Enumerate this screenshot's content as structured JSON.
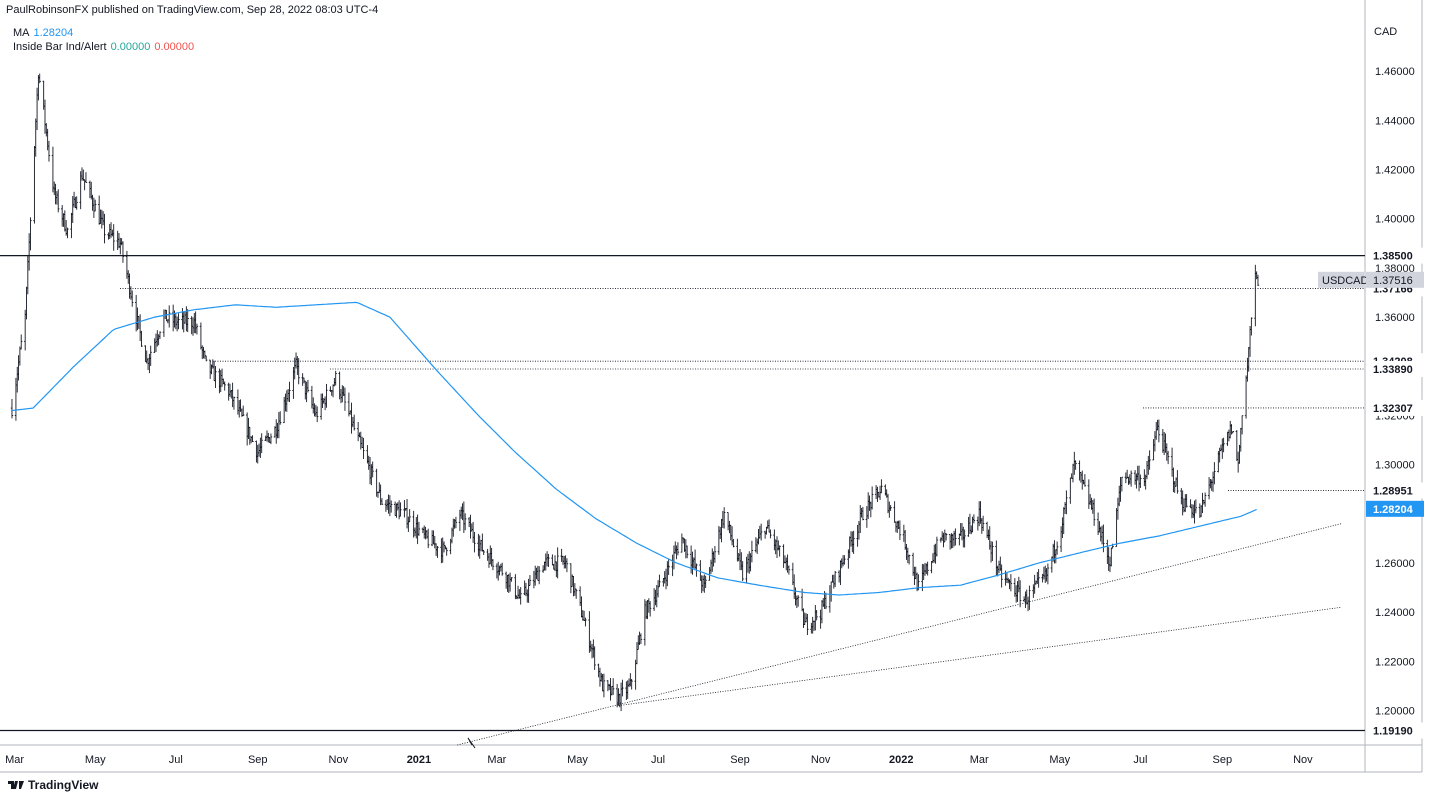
{
  "header": {
    "published": "PaulRobinsonFX published on TradingView.com, Sep 28, 2022 08:03 UTC-4"
  },
  "legend": {
    "ma_label": "MA",
    "ma_value": "1.28204",
    "inside_bar_label": "Inside Bar Ind/Alert",
    "inside_bar_green": "0.00000",
    "inside_bar_red": "0.00000"
  },
  "footer": {
    "brand": "TradingView",
    "logo_icon": "tradingview-logo-icon"
  },
  "colors": {
    "ma_line": "#2196f3",
    "candle": "#131722",
    "background": "#ffffff",
    "ma_badge": "#2196f3"
  },
  "chart_data": {
    "type": "candlestick",
    "symbol": "USDCAD",
    "currency": "CAD",
    "ylim": [
      1.186,
      1.48
    ],
    "y_ticks": [
      "1.46000",
      "1.44000",
      "1.42000",
      "1.40000",
      "1.38000",
      "1.36000",
      "1.34000",
      "1.32000",
      "1.30000",
      "1.26000",
      "1.24000",
      "1.22000",
      "1.20000"
    ],
    "x_ticks": [
      {
        "label": "Mar",
        "bold": false
      },
      {
        "label": "May",
        "bold": false
      },
      {
        "label": "Jul",
        "bold": false
      },
      {
        "label": "Sep",
        "bold": false
      },
      {
        "label": "Nov",
        "bold": false
      },
      {
        "label": "2021",
        "bold": true
      },
      {
        "label": "Mar",
        "bold": false
      },
      {
        "label": "May",
        "bold": false
      },
      {
        "label": "Jul",
        "bold": false
      },
      {
        "label": "Sep",
        "bold": false
      },
      {
        "label": "Nov",
        "bold": false
      },
      {
        "label": "2022",
        "bold": true
      },
      {
        "label": "Mar",
        "bold": false
      },
      {
        "label": "May",
        "bold": false
      },
      {
        "label": "Jul",
        "bold": false
      },
      {
        "label": "Sep",
        "bold": false
      },
      {
        "label": "Nov",
        "bold": false
      }
    ],
    "price_waypoints": [
      [
        "2020-02-28",
        1.323
      ],
      [
        "2020-03-09",
        1.36
      ],
      [
        "2020-03-19",
        1.46
      ],
      [
        "2020-03-31",
        1.41
      ],
      [
        "2020-04-10",
        1.395
      ],
      [
        "2020-04-21",
        1.418
      ],
      [
        "2020-05-08",
        1.395
      ],
      [
        "2020-05-20",
        1.39
      ],
      [
        "2020-06-01",
        1.36
      ],
      [
        "2020-06-09",
        1.342
      ],
      [
        "2020-06-22",
        1.36
      ],
      [
        "2020-07-01",
        1.358
      ],
      [
        "2020-07-15",
        1.358
      ],
      [
        "2020-07-24",
        1.34
      ],
      [
        "2020-08-10",
        1.33
      ],
      [
        "2020-09-01",
        1.305
      ],
      [
        "2020-09-15",
        1.315
      ],
      [
        "2020-09-30",
        1.34
      ],
      [
        "2020-10-15",
        1.32
      ],
      [
        "2020-10-30",
        1.335
      ],
      [
        "2020-11-16",
        1.31
      ],
      [
        "2020-12-04",
        1.285
      ],
      [
        "2020-12-21",
        1.28
      ],
      [
        "2021-01-06",
        1.27
      ],
      [
        "2021-01-20",
        1.265
      ],
      [
        "2021-02-01",
        1.28
      ],
      [
        "2021-02-19",
        1.265
      ],
      [
        "2021-03-08",
        1.255
      ],
      [
        "2021-03-19",
        1.245
      ],
      [
        "2021-04-06",
        1.26
      ],
      [
        "2021-04-22",
        1.26
      ],
      [
        "2021-05-04",
        1.24
      ],
      [
        "2021-05-20",
        1.21
      ],
      [
        "2021-06-01",
        1.205
      ],
      [
        "2021-06-10",
        1.21
      ],
      [
        "2021-06-21",
        1.24
      ],
      [
        "2021-07-02",
        1.25
      ],
      [
        "2021-07-19",
        1.27
      ],
      [
        "2021-08-05",
        1.25
      ],
      [
        "2021-08-20",
        1.28
      ],
      [
        "2021-09-03",
        1.255
      ],
      [
        "2021-09-20",
        1.275
      ],
      [
        "2021-10-05",
        1.26
      ],
      [
        "2021-10-20",
        1.235
      ],
      [
        "2021-11-01",
        1.24
      ],
      [
        "2021-11-17",
        1.26
      ],
      [
        "2021-12-03",
        1.28
      ],
      [
        "2021-12-17",
        1.29
      ],
      [
        "2022-01-03",
        1.27
      ],
      [
        "2022-01-14",
        1.25
      ],
      [
        "2022-01-31",
        1.27
      ],
      [
        "2022-02-15",
        1.27
      ],
      [
        "2022-03-01",
        1.28
      ],
      [
        "2022-03-17",
        1.255
      ],
      [
        "2022-04-05",
        1.245
      ],
      [
        "2022-04-21",
        1.255
      ],
      [
        "2022-05-02",
        1.275
      ],
      [
        "2022-05-12",
        1.3
      ],
      [
        "2022-05-27",
        1.28
      ],
      [
        "2022-06-08",
        1.26
      ],
      [
        "2022-06-17",
        1.295
      ],
      [
        "2022-07-05",
        1.295
      ],
      [
        "2022-07-14",
        1.315
      ],
      [
        "2022-08-01",
        1.285
      ],
      [
        "2022-08-15",
        1.28
      ],
      [
        "2022-08-31",
        1.305
      ],
      [
        "2022-09-08",
        1.315
      ],
      [
        "2022-09-13",
        1.3
      ],
      [
        "2022-09-16",
        1.322
      ],
      [
        "2022-09-20",
        1.34
      ],
      [
        "2022-09-23",
        1.36
      ],
      [
        "2022-09-26",
        1.375
      ],
      [
        "2022-09-28",
        1.3752
      ]
    ],
    "ma_waypoints": [
      [
        "2020-02-28",
        1.322
      ],
      [
        "2020-03-15",
        1.323
      ],
      [
        "2020-04-15",
        1.34
      ],
      [
        "2020-05-15",
        1.355
      ],
      [
        "2020-06-15",
        1.36
      ],
      [
        "2020-07-15",
        1.363
      ],
      [
        "2020-08-15",
        1.365
      ],
      [
        "2020-09-15",
        1.364
      ],
      [
        "2020-10-15",
        1.365
      ],
      [
        "2020-11-15",
        1.366
      ],
      [
        "2020-12-10",
        1.36
      ],
      [
        "2021-01-15",
        1.338
      ],
      [
        "2021-02-15",
        1.32
      ],
      [
        "2021-03-15",
        1.305
      ],
      [
        "2021-04-15",
        1.29
      ],
      [
        "2021-05-15",
        1.278
      ],
      [
        "2021-06-15",
        1.268
      ],
      [
        "2021-07-15",
        1.26
      ],
      [
        "2021-08-15",
        1.254
      ],
      [
        "2021-09-15",
        1.251
      ],
      [
        "2021-10-20",
        1.248
      ],
      [
        "2021-11-15",
        1.247
      ],
      [
        "2021-12-15",
        1.248
      ],
      [
        "2022-01-15",
        1.25
      ],
      [
        "2022-02-15",
        1.251
      ],
      [
        "2022-03-15",
        1.255
      ],
      [
        "2022-04-15",
        1.26
      ],
      [
        "2022-05-15",
        1.264
      ],
      [
        "2022-06-15",
        1.268
      ],
      [
        "2022-07-15",
        1.271
      ],
      [
        "2022-08-15",
        1.275
      ],
      [
        "2022-09-15",
        1.279
      ],
      [
        "2022-09-28",
        1.282
      ]
    ],
    "price_levels": [
      {
        "value": "1.38500",
        "style": "solid",
        "badge": "dark"
      },
      {
        "value": "1.37166",
        "style": "dotted",
        "badge": "dark"
      },
      {
        "value": "1.34208",
        "style": "dotted",
        "badge": "dark"
      },
      {
        "value": "1.33890",
        "style": "dotted",
        "badge": "dark"
      },
      {
        "value": "1.32307",
        "style": "dotted",
        "badge": "dark"
      },
      {
        "value": "1.28951",
        "style": "dotted",
        "badge": "dark"
      },
      {
        "value": "1.19190",
        "style": "solid",
        "badge": "dark"
      }
    ],
    "last_price": {
      "label": "USDCAD",
      "value": "1.37516"
    },
    "ma_last": {
      "value": "1.28204"
    },
    "trendlines": [
      {
        "from": [
          "2021-01-30",
          1.186
        ],
        "to": [
          "2022-11-30",
          1.276
        ]
      },
      {
        "from": [
          "2021-06-01",
          1.202
        ],
        "to": [
          "2022-11-30",
          1.242
        ]
      }
    ]
  }
}
